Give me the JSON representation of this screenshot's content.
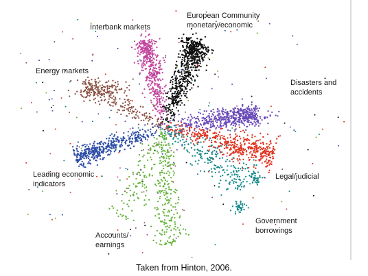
{
  "chart_data": {
    "type": "scatter",
    "title": "",
    "xlabel": "",
    "ylabel": "",
    "grid": false,
    "legend": "none",
    "series": [
      {
        "name": "European Community monetary/economic",
        "color": "#111111"
      },
      {
        "name": "Interbank markets",
        "color": "#c2469e"
      },
      {
        "name": "Energy markets",
        "color": "#8b5346"
      },
      {
        "name": "Disasters and accidents",
        "color": "#6a4bb8"
      },
      {
        "name": "Legal/judicial",
        "color": "#e0321f"
      },
      {
        "name": "Government borrowings",
        "color": "#14898a"
      },
      {
        "name": "Accounts/ earnings",
        "color": "#65b23a"
      },
      {
        "name": "Leading economic indicators",
        "color": "#2e4ea6"
      }
    ],
    "annotations": [
      {
        "text_lines": [
          "European Community",
          "monetary/economic"
        ]
      },
      {
        "text_lines": [
          "Interbank markets"
        ]
      },
      {
        "text_lines": [
          "Energy markets"
        ]
      },
      {
        "text_lines": [
          "Disasters and",
          "accidents"
        ]
      },
      {
        "text_lines": [
          "Legal/judicial"
        ]
      },
      {
        "text_lines": [
          "Government",
          "borrowings"
        ]
      },
      {
        "text_lines": [
          "Accounts/",
          "earnings"
        ]
      },
      {
        "text_lines": [
          "Leading economic",
          "indicators"
        ]
      }
    ]
  },
  "caption": "Taken from Hinton, 2006."
}
